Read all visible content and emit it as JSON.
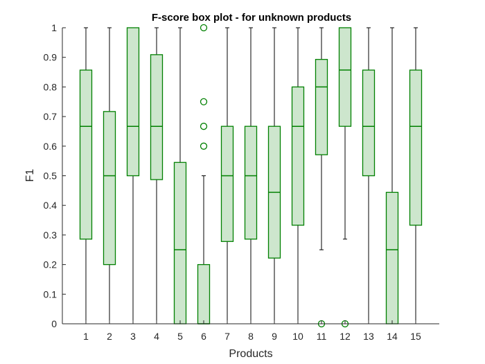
{
  "chart_data": {
    "type": "box",
    "title": "F-score box plot - for unknown products",
    "xlabel": "Products",
    "ylabel": "F1",
    "ylim": [
      0,
      1
    ],
    "yticks": [
      "0",
      "0.1",
      "0.2",
      "0.3",
      "0.4",
      "0.5",
      "0.6",
      "0.7",
      "0.8",
      "0.9",
      "1"
    ],
    "categories": [
      "1",
      "2",
      "3",
      "4",
      "5",
      "6",
      "7",
      "8",
      "9",
      "10",
      "11",
      "12",
      "13",
      "14",
      "15"
    ],
    "boxes": [
      {
        "category": "1",
        "whisker_low": 0,
        "q1": 0.286,
        "median": 0.667,
        "q3": 0.857,
        "whisker_high": 1,
        "outliers": []
      },
      {
        "category": "2",
        "whisker_low": 0,
        "q1": 0.2,
        "median": 0.5,
        "q3": 0.717,
        "whisker_high": 1,
        "outliers": []
      },
      {
        "category": "3",
        "whisker_low": 0,
        "q1": 0.5,
        "median": 0.667,
        "q3": 1,
        "whisker_high": 1,
        "outliers": []
      },
      {
        "category": "4",
        "whisker_low": 0,
        "q1": 0.487,
        "median": 0.667,
        "q3": 0.909,
        "whisker_high": 1,
        "outliers": []
      },
      {
        "category": "5",
        "whisker_low": 0,
        "q1": 0,
        "median": 0.25,
        "q3": 0.545,
        "whisker_high": 1,
        "outliers": []
      },
      {
        "category": "6",
        "whisker_low": 0,
        "q1": 0,
        "median": 0,
        "q3": 0.2,
        "whisker_high": 0.5,
        "outliers": [
          0.6,
          0.667,
          0.75,
          1
        ]
      },
      {
        "category": "7",
        "whisker_low": 0,
        "q1": 0.278,
        "median": 0.5,
        "q3": 0.667,
        "whisker_high": 1,
        "outliers": []
      },
      {
        "category": "8",
        "whisker_low": 0,
        "q1": 0.286,
        "median": 0.5,
        "q3": 0.667,
        "whisker_high": 1,
        "outliers": []
      },
      {
        "category": "9",
        "whisker_low": 0,
        "q1": 0.222,
        "median": 0.444,
        "q3": 0.667,
        "whisker_high": 1,
        "outliers": []
      },
      {
        "category": "10",
        "whisker_low": 0,
        "q1": 0.333,
        "median": 0.667,
        "q3": 0.8,
        "whisker_high": 1,
        "outliers": []
      },
      {
        "category": "11",
        "whisker_low": 0.25,
        "q1": 0.571,
        "median": 0.8,
        "q3": 0.893,
        "whisker_high": 1,
        "outliers": [
          0
        ]
      },
      {
        "category": "12",
        "whisker_low": 0.286,
        "q1": 0.667,
        "median": 0.857,
        "q3": 1,
        "whisker_high": 1,
        "outliers": [
          0
        ]
      },
      {
        "category": "13",
        "whisker_low": 0,
        "q1": 0.5,
        "median": 0.667,
        "q3": 0.857,
        "whisker_high": 1,
        "outliers": []
      },
      {
        "category": "14",
        "whisker_low": 0,
        "q1": 0,
        "median": 0.25,
        "q3": 0.444,
        "whisker_high": 1,
        "outliers": []
      },
      {
        "category": "15",
        "whisker_low": 0,
        "q1": 0.333,
        "median": 0.667,
        "q3": 0.857,
        "whisker_high": 1,
        "outliers": []
      }
    ],
    "grid": false,
    "legend": "none"
  },
  "colors": {
    "box_edge": "#008000",
    "box_fill": "#cde6cd",
    "whisker": "#000000",
    "outlier": "#008000",
    "axis": "#262626"
  }
}
